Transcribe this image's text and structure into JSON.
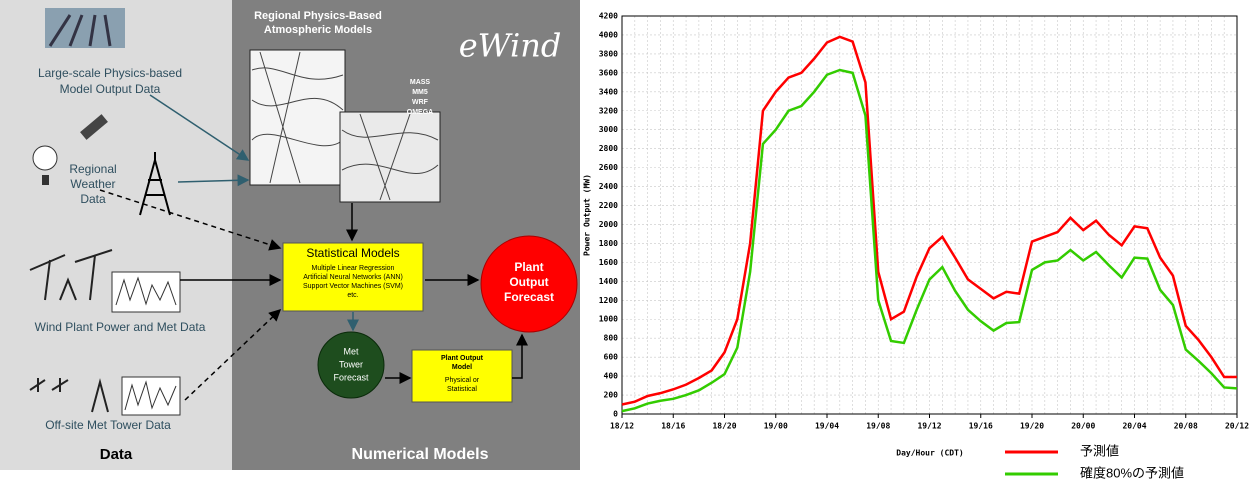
{
  "diagram": {
    "data_panel": {
      "title": "Data",
      "sources": [
        {
          "label": [
            "Large-scale Physics-based",
            "Model Output Data"
          ]
        },
        {
          "label": [
            "Regional",
            "Weather",
            "Data"
          ]
        },
        {
          "label": [
            "Wind Plant Power and Met Data"
          ]
        },
        {
          "label": [
            "Off-site Met Tower Data"
          ]
        }
      ]
    },
    "models_panel": {
      "title": "Numerical Models",
      "brand": "eWind",
      "physics": {
        "label": [
          "Regional Physics-Based",
          "Atmospheric Models"
        ],
        "models": [
          "MASS",
          "MM5",
          "WRF",
          "OMEGA"
        ]
      },
      "statistical": {
        "title": "Statistical Models",
        "items": [
          "Multiple Linear Regression",
          "Artificial Neural Networks (ANN)",
          "Support Vector Machines (SVM)",
          "etc."
        ]
      },
      "met_tower": [
        "Met",
        "Tower",
        "Forecast"
      ],
      "plant_model": {
        "title": [
          "Plant Output",
          "Model"
        ],
        "body": [
          "Physical or",
          "Statistical"
        ]
      },
      "forecast": [
        "Plant",
        "Output",
        "Forecast"
      ]
    }
  },
  "chart_data": {
    "type": "line",
    "y_label": "Power Output (MW)",
    "x_label": "Day/Hour (CDT)",
    "categories": [
      "18/12",
      null,
      null,
      null,
      "18/16",
      null,
      null,
      null,
      "18/20",
      null,
      null,
      null,
      "19/00",
      null,
      null,
      null,
      "19/04",
      null,
      null,
      null,
      "19/08",
      null,
      null,
      null,
      "19/12",
      null,
      null,
      null,
      "19/16",
      null,
      null,
      null,
      "19/20",
      null,
      null,
      null,
      "20/00",
      null,
      null,
      null,
      "20/04",
      null,
      null,
      null,
      "20/08",
      null,
      null,
      null,
      "20/12"
    ],
    "series": [
      {
        "name": "予測値",
        "color": "#ff0000",
        "values": [
          100,
          130,
          190,
          220,
          260,
          310,
          380,
          460,
          650,
          1000,
          1800,
          3200,
          3400,
          3550,
          3600,
          3750,
          3920,
          3980,
          3930,
          3500,
          1500,
          1000,
          1080,
          1450,
          1750,
          1870,
          1650,
          1420,
          1320,
          1220,
          1290,
          1270,
          1820,
          1870,
          1920,
          2070,
          1940,
          2040,
          1890,
          1780,
          1980,
          1960,
          1650,
          1460,
          930,
          780,
          600,
          390,
          390
        ]
      },
      {
        "name": "確度80%の予測値",
        "color": "#33cc00",
        "values": [
          30,
          60,
          110,
          140,
          160,
          200,
          250,
          330,
          420,
          700,
          1500,
          2850,
          3000,
          3200,
          3250,
          3400,
          3580,
          3630,
          3600,
          3150,
          1200,
          770,
          750,
          1100,
          1420,
          1550,
          1300,
          1100,
          980,
          880,
          960,
          970,
          1520,
          1600,
          1620,
          1730,
          1620,
          1710,
          1570,
          1440,
          1650,
          1640,
          1310,
          1150,
          680,
          560,
          430,
          280,
          270
        ]
      }
    ],
    "ylim": [
      0,
      4200
    ],
    "yticks": [
      0,
      200,
      400,
      600,
      800,
      1000,
      1200,
      1400,
      1600,
      1800,
      2000,
      2200,
      2400,
      2600,
      2800,
      3000,
      3200,
      3400,
      3600,
      3800,
      4000,
      4200
    ],
    "grid": true
  }
}
